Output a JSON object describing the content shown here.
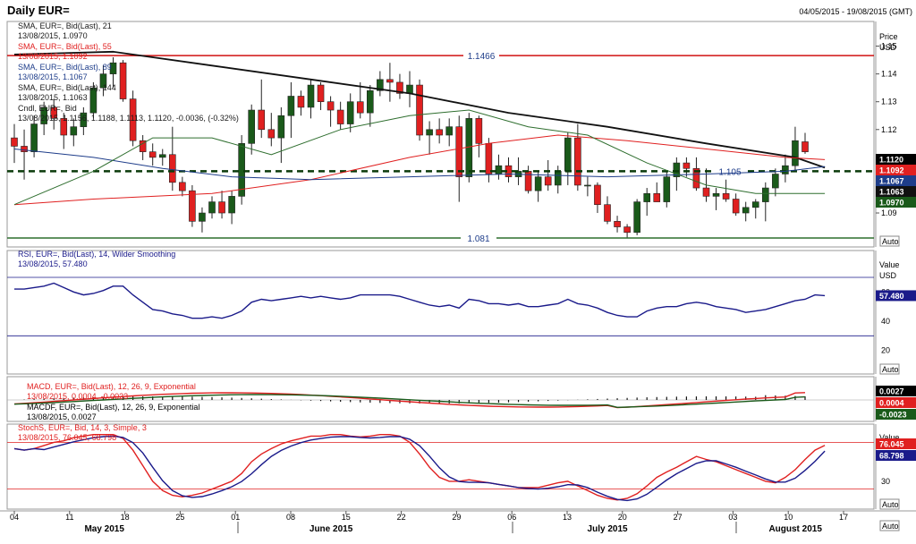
{
  "header": {
    "title": "Daily EUR=",
    "date_range": "04/05/2015 - 19/08/2015 (GMT)"
  },
  "colors": {
    "bull": "#1a5a1a",
    "bear": "#e02020",
    "sma21": "#2e6e2e",
    "sma55": "#e02020",
    "sma89": "#1e3d8a",
    "sma144": "#111111",
    "hline": "#d01010",
    "dashed": "#0a3a0a",
    "rsi": "#1a1a8a",
    "macd": "#e02020",
    "signal": "#1a5a1a",
    "stoch_k": "#e02020",
    "stoch_d": "#1a1a8a"
  },
  "price_panel": {
    "axis_title": "Price",
    "axis_unit": "USD",
    "ticks": [
      "1.15",
      "1.14",
      "1.13",
      "1.12",
      "1.11",
      "1.10",
      "1.09"
    ],
    "ylim": [
      1.081,
      1.155
    ],
    "legend": [
      {
        "line1": "SMA, EUR=, Bid(Last), 21",
        "line2": "13/08/2015, 1.0970",
        "color": "#1a1a1a"
      },
      {
        "line1": "SMA, EUR=, Bid(Last), 55",
        "line2": "13/08/2015, 1.1092",
        "color": "#e02020"
      },
      {
        "line1": "SMA, EUR=, Bid(Last), 89",
        "line2": "13/08/2015, 1.1067",
        "color": "#1e3d8a"
      },
      {
        "line1": "SMA, EUR=, Bid(Last), 144",
        "line2": "13/08/2015, 1.1063",
        "color": "#1a1a1a"
      },
      {
        "line1": "Cndl, EUR=, Bid",
        "line2": "13/08/2015, 1.1156, 1.1188, 1.1113, 1.1120, -0.0036, (-0.32%)",
        "color": "#1a1a1a"
      }
    ],
    "levels": [
      {
        "label": "1.1466",
        "value": 1.1466
      },
      {
        "label": "1.105",
        "value": 1.105
      },
      {
        "label": "1.081",
        "value": 1.081
      }
    ],
    "value_tags": [
      {
        "text": "1.1120",
        "value": 1.112,
        "bg": "#000000",
        "fg": "#ffffff"
      },
      {
        "text": "1.1092",
        "value": 1.1092,
        "bg": "#e02020",
        "fg": "#ffffff"
      },
      {
        "text": "1.1067",
        "value": 1.1067,
        "bg": "#1e3d8a",
        "fg": "#ffffff"
      },
      {
        "text": "1.1063",
        "value": 1.1063,
        "bg": "#111111",
        "fg": "#ffffff"
      },
      {
        "text": "1.0970",
        "value": 1.097,
        "bg": "#1a5a1a",
        "fg": "#ffffff"
      }
    ],
    "auto_label": "Auto"
  },
  "rsi_panel": {
    "legend1": "RSI, EUR=, Bid(Last), 14, Wilder Smoothing",
    "legend2": "13/08/2015, 57.480",
    "axis_title": "Value",
    "axis_unit": "USD",
    "ticks": [
      "60",
      "40",
      "20"
    ],
    "tag": "57.480",
    "auto_label": "Auto"
  },
  "macd_panel": {
    "legend1": "MACD, EUR=, Bid(Last), 12, 26, 9, Exponential",
    "legend2": "13/08/2015, 0.0004, -0.0023",
    "legend3": "MACDF, EUR=, Bid(Last), 12, 26, 9, Exponential",
    "legend4": "13/08/2015, 0.0027",
    "tags": [
      {
        "text": "0.0027",
        "bg": "#000000"
      },
      {
        "text": "0.0004",
        "bg": "#e02020"
      },
      {
        "text": "-0.0023",
        "bg": "#1a5a1a"
      }
    ]
  },
  "stoch_panel": {
    "legend1": "StochS, EUR=, Bid, 14, 3, Simple, 3",
    "legend2": "13/08/2015, 76.045, 68.798",
    "axis_title": "Value",
    "ticks": [
      "60",
      "30"
    ],
    "tags": [
      {
        "text": "76.045",
        "bg": "#e02020"
      },
      {
        "text": "68.798",
        "bg": "#1a1a8a"
      }
    ],
    "auto_label": "Auto"
  },
  "x_axis": {
    "days": [
      "04",
      "11",
      "18",
      "25",
      "01",
      "08",
      "15",
      "22",
      "29",
      "06",
      "13",
      "20",
      "27",
      "03",
      "10",
      "17"
    ],
    "months": [
      {
        "label": "May 2015",
        "day_index": 1.5
      },
      {
        "label": "June 2015",
        "day_index": 5.6
      },
      {
        "label": "July 2015",
        "day_index": 10.6
      },
      {
        "label": "August 2015",
        "day_index": 14.0
      }
    ],
    "auto_label": "Auto"
  },
  "chart_data": {
    "type": "candlestick",
    "instrument": "EUR=",
    "timeframe": "Daily",
    "date_range": [
      "04/05/2015",
      "19/08/2015"
    ],
    "candles": [
      {
        "o": 1.117,
        "h": 1.122,
        "l": 1.108,
        "c": 1.114
      },
      {
        "o": 1.114,
        "h": 1.12,
        "l": 1.102,
        "c": 1.112
      },
      {
        "o": 1.112,
        "h": 1.125,
        "l": 1.11,
        "c": 1.122
      },
      {
        "o": 1.122,
        "h": 1.13,
        "l": 1.118,
        "c": 1.128
      },
      {
        "o": 1.128,
        "h": 1.131,
        "l": 1.12,
        "c": 1.124
      },
      {
        "o": 1.124,
        "h": 1.126,
        "l": 1.113,
        "c": 1.118
      },
      {
        "o": 1.118,
        "h": 1.124,
        "l": 1.114,
        "c": 1.121
      },
      {
        "o": 1.121,
        "h": 1.128,
        "l": 1.118,
        "c": 1.126
      },
      {
        "o": 1.126,
        "h": 1.137,
        "l": 1.124,
        "c": 1.135
      },
      {
        "o": 1.135,
        "h": 1.143,
        "l": 1.132,
        "c": 1.14
      },
      {
        "o": 1.14,
        "h": 1.146,
        "l": 1.135,
        "c": 1.144
      },
      {
        "o": 1.144,
        "h": 1.145,
        "l": 1.13,
        "c": 1.131
      },
      {
        "o": 1.131,
        "h": 1.134,
        "l": 1.114,
        "c": 1.116
      },
      {
        "o": 1.116,
        "h": 1.118,
        "l": 1.109,
        "c": 1.112
      },
      {
        "o": 1.112,
        "h": 1.115,
        "l": 1.107,
        "c": 1.11
      },
      {
        "o": 1.11,
        "h": 1.113,
        "l": 1.107,
        "c": 1.111
      },
      {
        "o": 1.111,
        "h": 1.121,
        "l": 1.098,
        "c": 1.101
      },
      {
        "o": 1.101,
        "h": 1.103,
        "l": 1.096,
        "c": 1.098
      },
      {
        "o": 1.098,
        "h": 1.1,
        "l": 1.085,
        "c": 1.087
      },
      {
        "o": 1.087,
        "h": 1.092,
        "l": 1.083,
        "c": 1.09
      },
      {
        "o": 1.09,
        "h": 1.096,
        "l": 1.088,
        "c": 1.094
      },
      {
        "o": 1.094,
        "h": 1.098,
        "l": 1.088,
        "c": 1.09
      },
      {
        "o": 1.09,
        "h": 1.098,
        "l": 1.086,
        "c": 1.096
      },
      {
        "o": 1.096,
        "h": 1.118,
        "l": 1.093,
        "c": 1.115
      },
      {
        "o": 1.115,
        "h": 1.129,
        "l": 1.111,
        "c": 1.127
      },
      {
        "o": 1.127,
        "h": 1.138,
        "l": 1.117,
        "c": 1.12
      },
      {
        "o": 1.12,
        "h": 1.126,
        "l": 1.114,
        "c": 1.117
      },
      {
        "o": 1.117,
        "h": 1.128,
        "l": 1.108,
        "c": 1.125
      },
      {
        "o": 1.125,
        "h": 1.137,
        "l": 1.117,
        "c": 1.132
      },
      {
        "o": 1.132,
        "h": 1.134,
        "l": 1.125,
        "c": 1.128
      },
      {
        "o": 1.128,
        "h": 1.138,
        "l": 1.124,
        "c": 1.136
      },
      {
        "o": 1.136,
        "h": 1.137,
        "l": 1.127,
        "c": 1.13
      },
      {
        "o": 1.13,
        "h": 1.132,
        "l": 1.121,
        "c": 1.127
      },
      {
        "o": 1.127,
        "h": 1.13,
        "l": 1.12,
        "c": 1.122
      },
      {
        "o": 1.122,
        "h": 1.133,
        "l": 1.119,
        "c": 1.13
      },
      {
        "o": 1.13,
        "h": 1.137,
        "l": 1.124,
        "c": 1.126
      },
      {
        "o": 1.126,
        "h": 1.136,
        "l": 1.121,
        "c": 1.134
      },
      {
        "o": 1.134,
        "h": 1.141,
        "l": 1.132,
        "c": 1.138
      },
      {
        "o": 1.138,
        "h": 1.144,
        "l": 1.13,
        "c": 1.137
      },
      {
        "o": 1.137,
        "h": 1.14,
        "l": 1.131,
        "c": 1.133
      },
      {
        "o": 1.133,
        "h": 1.141,
        "l": 1.128,
        "c": 1.136
      },
      {
        "o": 1.136,
        "h": 1.138,
        "l": 1.116,
        "c": 1.118
      },
      {
        "o": 1.118,
        "h": 1.123,
        "l": 1.111,
        "c": 1.12
      },
      {
        "o": 1.12,
        "h": 1.124,
        "l": 1.115,
        "c": 1.118
      },
      {
        "o": 1.118,
        "h": 1.124,
        "l": 1.114,
        "c": 1.121
      },
      {
        "o": 1.121,
        "h": 1.125,
        "l": 1.094,
        "c": 1.103
      },
      {
        "o": 1.103,
        "h": 1.126,
        "l": 1.101,
        "c": 1.124
      },
      {
        "o": 1.124,
        "h": 1.125,
        "l": 1.11,
        "c": 1.115
      },
      {
        "o": 1.115,
        "h": 1.117,
        "l": 1.101,
        "c": 1.104
      },
      {
        "o": 1.104,
        "h": 1.111,
        "l": 1.102,
        "c": 1.107
      },
      {
        "o": 1.107,
        "h": 1.11,
        "l": 1.101,
        "c": 1.103
      },
      {
        "o": 1.103,
        "h": 1.11,
        "l": 1.1,
        "c": 1.105
      },
      {
        "o": 1.105,
        "h": 1.107,
        "l": 1.097,
        "c": 1.098
      },
      {
        "o": 1.098,
        "h": 1.105,
        "l": 1.094,
        "c": 1.103
      },
      {
        "o": 1.103,
        "h": 1.109,
        "l": 1.098,
        "c": 1.1
      },
      {
        "o": 1.1,
        "h": 1.107,
        "l": 1.097,
        "c": 1.105
      },
      {
        "o": 1.105,
        "h": 1.119,
        "l": 1.1,
        "c": 1.117
      },
      {
        "o": 1.117,
        "h": 1.122,
        "l": 1.098,
        "c": 1.1
      },
      {
        "o": 1.1,
        "h": 1.103,
        "l": 1.096,
        "c": 1.1
      },
      {
        "o": 1.1,
        "h": 1.101,
        "l": 1.09,
        "c": 1.093
      },
      {
        "o": 1.093,
        "h": 1.096,
        "l": 1.086,
        "c": 1.087
      },
      {
        "o": 1.087,
        "h": 1.089,
        "l": 1.083,
        "c": 1.085
      },
      {
        "o": 1.085,
        "h": 1.086,
        "l": 1.081,
        "c": 1.083
      },
      {
        "o": 1.083,
        "h": 1.095,
        "l": 1.082,
        "c": 1.094
      },
      {
        "o": 1.094,
        "h": 1.099,
        "l": 1.089,
        "c": 1.097
      },
      {
        "o": 1.097,
        "h": 1.101,
        "l": 1.094,
        "c": 1.094
      },
      {
        "o": 1.094,
        "h": 1.105,
        "l": 1.092,
        "c": 1.103
      },
      {
        "o": 1.103,
        "h": 1.11,
        "l": 1.098,
        "c": 1.108
      },
      {
        "o": 1.108,
        "h": 1.11,
        "l": 1.103,
        "c": 1.106
      },
      {
        "o": 1.106,
        "h": 1.11,
        "l": 1.098,
        "c": 1.099
      },
      {
        "o": 1.099,
        "h": 1.106,
        "l": 1.094,
        "c": 1.096
      },
      {
        "o": 1.096,
        "h": 1.099,
        "l": 1.091,
        "c": 1.097
      },
      {
        "o": 1.097,
        "h": 1.102,
        "l": 1.094,
        "c": 1.095
      },
      {
        "o": 1.095,
        "h": 1.097,
        "l": 1.089,
        "c": 1.09
      },
      {
        "o": 1.09,
        "h": 1.094,
        "l": 1.087,
        "c": 1.092
      },
      {
        "o": 1.092,
        "h": 1.095,
        "l": 1.088,
        "c": 1.094
      },
      {
        "o": 1.094,
        "h": 1.101,
        "l": 1.087,
        "c": 1.099
      },
      {
        "o": 1.099,
        "h": 1.106,
        "l": 1.096,
        "c": 1.104
      },
      {
        "o": 1.104,
        "h": 1.111,
        "l": 1.101,
        "c": 1.107
      },
      {
        "o": 1.107,
        "h": 1.121,
        "l": 1.105,
        "c": 1.116
      },
      {
        "o": 1.1156,
        "h": 1.1188,
        "l": 1.1113,
        "c": 1.112
      }
    ],
    "sma": [
      {
        "name": "SMA 21",
        "value": 1.097
      },
      {
        "name": "SMA 55",
        "value": 1.1092
      },
      {
        "name": "SMA 89",
        "value": 1.1067
      },
      {
        "name": "SMA 144",
        "value": 1.1063
      }
    ],
    "horizontal_levels": [
      1.1466,
      1.105,
      1.081
    ],
    "rsi": {
      "period": 14,
      "last": 57.48,
      "ylim": [
        0,
        100
      ],
      "values": [
        62,
        62,
        63,
        64,
        66,
        63,
        60,
        58,
        59,
        61,
        64,
        64,
        58,
        53,
        48,
        47,
        45,
        44,
        42,
        42,
        43,
        42,
        44,
        47,
        53,
        55,
        54,
        55,
        56,
        57,
        56,
        57,
        56,
        55,
        56,
        58,
        58,
        58,
        58,
        57,
        55,
        53,
        51,
        50,
        51,
        49,
        55,
        54,
        52,
        52,
        51,
        52,
        50,
        50,
        51,
        52,
        55,
        52,
        51,
        49,
        46,
        44,
        43,
        43,
        47,
        49,
        50,
        50,
        52,
        53,
        52,
        50,
        49,
        48,
        46,
        47,
        48,
        50,
        52,
        54,
        55,
        58,
        57.48
      ]
    },
    "macd": {
      "last_macd": 0.0004,
      "last_signal": -0.0023,
      "last_hist": 0.0027
    },
    "stochastic": {
      "k": 76.045,
      "d": 68.798,
      "ylim": [
        0,
        100
      ]
    }
  }
}
